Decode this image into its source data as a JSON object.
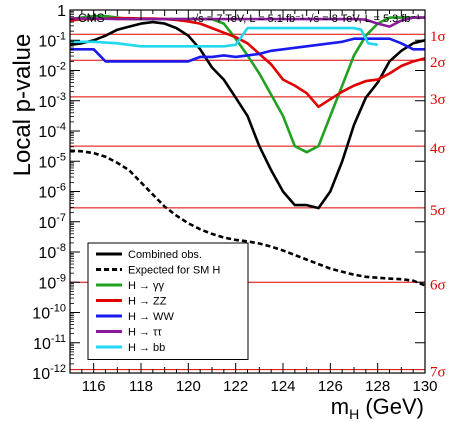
{
  "chart_data": {
    "type": "line",
    "header_left": "CMS",
    "header_right": "√s = 7 TeV, L = 5.1 fb⁻¹  √s = 8 TeV, L = 5.3 fb⁻¹",
    "xlabel": "m",
    "xlabel_sub": "H",
    "xlabel_unit": " (GeV)",
    "ylabel": "Local p-value",
    "xlim": [
      115,
      130
    ],
    "ylim_log10": [
      -12,
      0
    ],
    "y_scale": "log",
    "x_ticks": [
      "116",
      "118",
      "120",
      "122",
      "124",
      "126",
      "128",
      "130"
    ],
    "y_ticks": [
      {
        "base": "1",
        "exp": ""
      },
      {
        "base": "10",
        "exp": "-1"
      },
      {
        "base": "10",
        "exp": "-2"
      },
      {
        "base": "10",
        "exp": "-3"
      },
      {
        "base": "10",
        "exp": "-4"
      },
      {
        "base": "10",
        "exp": "-5"
      },
      {
        "base": "10",
        "exp": "-6"
      },
      {
        "base": "10",
        "exp": "-7"
      },
      {
        "base": "10",
        "exp": "-8"
      },
      {
        "base": "10",
        "exp": "-9"
      },
      {
        "base": "10",
        "exp": "-10"
      },
      {
        "base": "10",
        "exp": "-11"
      },
      {
        "base": "10",
        "exp": "-12"
      }
    ],
    "sigma_lines": [
      {
        "label": "1σ",
        "log10p": -0.8
      },
      {
        "label": "2σ",
        "log10p": -1.66
      },
      {
        "label": "3σ",
        "log10p": -2.87
      },
      {
        "label": "4σ",
        "log10p": -4.5
      },
      {
        "label": "5σ",
        "log10p": -6.54
      },
      {
        "label": "6σ",
        "log10p": -9.0
      },
      {
        "label": "7σ",
        "log10p": -11.89
      }
    ],
    "series": [
      {
        "name": "Combined obs.",
        "color": "#000000",
        "dash": "solid",
        "points": [
          [
            115,
            -1.15
          ],
          [
            115.5,
            -1.1
          ],
          [
            116,
            -1.0
          ],
          [
            116.5,
            -0.85
          ],
          [
            117,
            -0.65
          ],
          [
            117.5,
            -0.55
          ],
          [
            118,
            -0.45
          ],
          [
            118.5,
            -0.4
          ],
          [
            119,
            -0.45
          ],
          [
            119.5,
            -0.6
          ],
          [
            120,
            -0.85
          ],
          [
            120.5,
            -1.3
          ],
          [
            121,
            -1.9
          ],
          [
            121.5,
            -2.3
          ],
          [
            122,
            -2.9
          ],
          [
            122.5,
            -3.5
          ],
          [
            123,
            -4.5
          ],
          [
            123.5,
            -5.3
          ],
          [
            124,
            -6.0
          ],
          [
            124.5,
            -6.45
          ],
          [
            125,
            -6.45
          ],
          [
            125.5,
            -6.55
          ],
          [
            126,
            -6.0
          ],
          [
            126.5,
            -5.0
          ],
          [
            127,
            -3.8
          ],
          [
            127.5,
            -2.9
          ],
          [
            128,
            -2.4
          ],
          [
            128.5,
            -1.7
          ],
          [
            129,
            -1.35
          ],
          [
            129.5,
            -1.1
          ],
          [
            130,
            -1.0
          ]
        ]
      },
      {
        "name": "Expected for SM H",
        "color": "#000000",
        "dash": "dashed",
        "points": [
          [
            115,
            -4.65
          ],
          [
            115.5,
            -4.67
          ],
          [
            116,
            -4.73
          ],
          [
            116.5,
            -4.85
          ],
          [
            117,
            -5.05
          ],
          [
            117.5,
            -5.3
          ],
          [
            118,
            -5.7
          ],
          [
            118.5,
            -6.1
          ],
          [
            119,
            -6.5
          ],
          [
            119.5,
            -6.8
          ],
          [
            120,
            -7.05
          ],
          [
            120.5,
            -7.25
          ],
          [
            121,
            -7.4
          ],
          [
            121.5,
            -7.52
          ],
          [
            122,
            -7.6
          ],
          [
            122.5,
            -7.65
          ],
          [
            123,
            -7.72
          ],
          [
            123.5,
            -7.82
          ],
          [
            124,
            -7.95
          ],
          [
            124.5,
            -8.1
          ],
          [
            125,
            -8.25
          ],
          [
            125.5,
            -8.4
          ],
          [
            126,
            -8.55
          ],
          [
            126.5,
            -8.65
          ],
          [
            127,
            -8.75
          ],
          [
            127.5,
            -8.82
          ],
          [
            128,
            -8.85
          ],
          [
            128.5,
            -8.88
          ],
          [
            129,
            -8.9
          ],
          [
            129.5,
            -8.95
          ],
          [
            130,
            -9.1
          ]
        ]
      },
      {
        "name": "H → γγ",
        "color": "#22a022",
        "dash": "solid",
        "points": [
          [
            115,
            -0.3
          ],
          [
            115.5,
            -0.25
          ],
          [
            116,
            -0.2
          ],
          [
            116.5,
            -0.2
          ],
          [
            117,
            -0.25
          ],
          [
            117.5,
            -0.3
          ],
          [
            118,
            -0.3
          ],
          [
            118.5,
            -0.3
          ],
          [
            119,
            -0.3
          ],
          [
            119.5,
            -0.3
          ],
          [
            120,
            -0.3
          ],
          [
            120.5,
            -0.3
          ],
          [
            121,
            -0.3
          ],
          [
            121.5,
            -0.45
          ],
          [
            122,
            -0.95
          ],
          [
            122.5,
            -1.5
          ],
          [
            123,
            -2.1
          ],
          [
            123.5,
            -2.8
          ],
          [
            124,
            -3.5
          ],
          [
            124.5,
            -4.5
          ],
          [
            125,
            -4.7
          ],
          [
            125.5,
            -4.5
          ],
          [
            126,
            -3.5
          ],
          [
            126.5,
            -2.5
          ],
          [
            127,
            -1.5
          ],
          [
            127.5,
            -0.85
          ],
          [
            128,
            -0.45
          ],
          [
            128.5,
            -0.25
          ],
          [
            129,
            -0.25
          ],
          [
            129.5,
            -0.25
          ],
          [
            130,
            -0.25
          ]
        ]
      },
      {
        "name": "H → ZZ",
        "color": "#e00000",
        "dash": "solid",
        "points": [
          [
            115,
            -0.35
          ],
          [
            115.5,
            -0.3
          ],
          [
            116,
            -0.3
          ],
          [
            116.5,
            -0.28
          ],
          [
            117,
            -0.27
          ],
          [
            117.5,
            -0.27
          ],
          [
            118,
            -0.28
          ],
          [
            118.5,
            -0.28
          ],
          [
            119,
            -0.3
          ],
          [
            119.5,
            -0.33
          ],
          [
            120,
            -0.38
          ],
          [
            120.5,
            -0.45
          ],
          [
            121,
            -0.6
          ],
          [
            121.5,
            -0.75
          ],
          [
            122,
            -0.9
          ],
          [
            122.5,
            -1.1
          ],
          [
            123,
            -1.45
          ],
          [
            123.5,
            -1.8
          ],
          [
            124,
            -2.3
          ],
          [
            124.5,
            -2.5
          ],
          [
            125,
            -2.75
          ],
          [
            125.5,
            -3.2
          ],
          [
            126,
            -2.95
          ],
          [
            126.5,
            -2.7
          ],
          [
            127,
            -2.5
          ],
          [
            127.5,
            -2.35
          ],
          [
            128,
            -2.3
          ],
          [
            128.5,
            -2.1
          ],
          [
            129,
            -1.85
          ],
          [
            129.5,
            -1.7
          ],
          [
            130,
            -1.6
          ]
        ]
      },
      {
        "name": "H → WW",
        "color": "#1a1aee",
        "dash": "solid",
        "points": [
          [
            115,
            -1.3
          ],
          [
            115.5,
            -1.3
          ],
          [
            116,
            -1.3
          ],
          [
            116.5,
            -1.7
          ],
          [
            117,
            -1.7
          ],
          [
            117.5,
            -1.7
          ],
          [
            118,
            -1.7
          ],
          [
            118.5,
            -1.7
          ],
          [
            119,
            -1.7
          ],
          [
            119.5,
            -1.7
          ],
          [
            120,
            -1.7
          ],
          [
            120.5,
            -1.55
          ],
          [
            121,
            -1.55
          ],
          [
            121.5,
            -1.5
          ],
          [
            122,
            -1.55
          ],
          [
            122.5,
            -1.5
          ],
          [
            123,
            -1.45
          ],
          [
            123.5,
            -1.35
          ],
          [
            124,
            -1.3
          ],
          [
            124.5,
            -1.25
          ],
          [
            125,
            -1.2
          ],
          [
            125.5,
            -1.15
          ],
          [
            126,
            -1.1
          ],
          [
            126.5,
            -1.05
          ],
          [
            127,
            -0.95
          ],
          [
            127.5,
            -0.95
          ],
          [
            128,
            -0.95
          ],
          [
            128.5,
            -0.95
          ],
          [
            129,
            -1.1
          ],
          [
            129.5,
            -1.3
          ],
          [
            130,
            -1.3
          ]
        ]
      },
      {
        "name": "H → ττ",
        "color": "#8a1a9a",
        "dash": "solid",
        "points": [
          [
            115,
            -0.28
          ],
          [
            116,
            -0.28
          ],
          [
            117,
            -0.3
          ],
          [
            118,
            -0.3
          ],
          [
            119,
            -0.3
          ],
          [
            120,
            -0.3
          ],
          [
            121,
            -0.3
          ],
          [
            122,
            -0.3
          ],
          [
            123,
            -0.3
          ],
          [
            124,
            -0.3
          ],
          [
            125,
            -0.3
          ],
          [
            126,
            -0.3
          ],
          [
            127,
            -0.3
          ],
          [
            127.5,
            -0.32
          ],
          [
            128,
            -0.45
          ],
          [
            128.5,
            -0.55
          ],
          [
            129,
            -0.35
          ],
          [
            129.5,
            -0.25
          ],
          [
            130,
            -0.25
          ]
        ]
      },
      {
        "name": "H → bb",
        "color": "#22d8ee",
        "dash": "solid",
        "points": [
          [
            115,
            -1.05
          ],
          [
            116,
            -1.05
          ],
          [
            117,
            -1.1
          ],
          [
            118,
            -1.2
          ],
          [
            119,
            -1.2
          ],
          [
            120,
            -1.2
          ],
          [
            121,
            -1.2
          ],
          [
            121.5,
            -1.2
          ],
          [
            122,
            -1.15
          ],
          [
            122.5,
            -0.6
          ],
          [
            123,
            -0.6
          ],
          [
            124,
            -0.6
          ],
          [
            125,
            -0.6
          ],
          [
            126,
            -0.6
          ],
          [
            127,
            -0.6
          ],
          [
            127.3,
            -0.65
          ],
          [
            127.6,
            -1.1
          ],
          [
            128,
            -1.15
          ]
        ]
      }
    ],
    "legend": {
      "placement": "bottom-left"
    }
  }
}
